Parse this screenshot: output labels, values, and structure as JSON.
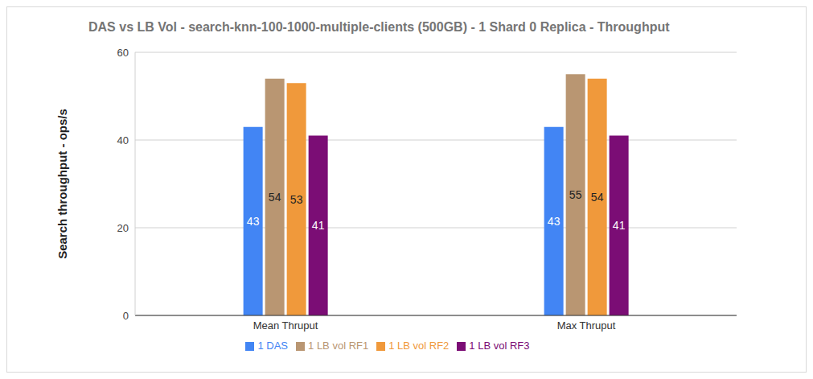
{
  "chart_data": {
    "type": "bar",
    "title": "DAS vs LB Vol - search-knn-100-1000-multiple-clients (500GB) - 1 Shard 0 Replica - Throughput",
    "y_label": "Search throughput - ops/s",
    "categories": [
      "Mean Thruput",
      "Max Thruput"
    ],
    "series": [
      {
        "name": "1 DAS",
        "color": "#4285f4",
        "values": [
          43,
          43
        ]
      },
      {
        "name": "1 LB vol RF1",
        "color": "#b99672",
        "values": [
          54,
          55
        ]
      },
      {
        "name": "1 LB vol RF2",
        "color": "#f0993b",
        "values": [
          53,
          54
        ]
      },
      {
        "name": "1 LB vol RF3",
        "color": "#7b0d75",
        "values": [
          41,
          41
        ]
      }
    ],
    "ylim": [
      0,
      60
    ],
    "yticks": [
      0,
      20,
      40,
      60
    ],
    "grid": true,
    "legend": "bottom",
    "data_labels": true
  }
}
